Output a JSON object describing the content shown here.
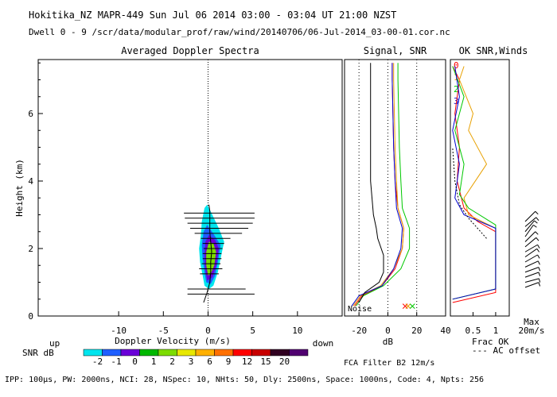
{
  "header": {
    "title": "Hokitika_NZ  MAPR-449  Sun Jul 06 2014 03:00 - 03:04 UT 21:00 NZST",
    "dwell": "Dwell  0 - 9  /scr/data/modular_prof/raw/wind/20140706/06-Jul-2014_03-00-01.cor.nc"
  },
  "footer": {
    "params": "IPP: 100µs,  PW: 2000ns,  NCI:  28,  NSpec: 10, NHts: 50,  Dly: 2500ns,  Space: 1000ns,  Code: 4,  Npts: 256",
    "fca": "FCA Filter B2 12m/s"
  },
  "colors": {
    "snr_scale": [
      "#00e5ee",
      "#1e5fff",
      "#6a00d8",
      "#00b800",
      "#7cdc00",
      "#e8e800",
      "#ffb000",
      "#ff7000",
      "#ff0000",
      "#c80000",
      "#300020",
      "#500070"
    ],
    "series": [
      "#ff0000",
      "#e8a000",
      "#00c800",
      "#0000d0"
    ]
  },
  "chart_data": [
    {
      "id": "doppler",
      "type": "heatmap",
      "title": "Averaged Doppler Spectra",
      "xlabel": "Doppler Velocity (m/s)",
      "ylabel": "Height (km)",
      "xlim": [
        -19,
        15
      ],
      "ylim": [
        0,
        7.6
      ],
      "x_ticks": [
        -10,
        -5,
        0,
        5,
        10
      ],
      "y_ticks": [
        0,
        2,
        4,
        6
      ],
      "x_end_labels": [
        "up",
        "down"
      ],
      "colorbar": {
        "label": "SNR dB",
        "tick_labels": [
          "-2",
          "-1",
          "0",
          "1",
          "2",
          "3",
          "6",
          "9",
          "12",
          "15",
          "20"
        ]
      },
      "contours": [
        {
          "level": "-2",
          "points": [
            [
              -0.4,
              0.9
            ],
            [
              -0.6,
              1.2
            ],
            [
              -0.9,
              1.6
            ],
            [
              -1.0,
              2.0
            ],
            [
              -0.8,
              2.4
            ],
            [
              -0.7,
              2.8
            ],
            [
              -0.4,
              3.2
            ],
            [
              -0.1,
              3.3
            ],
            [
              0.3,
              3.1
            ],
            [
              1.2,
              2.6
            ],
            [
              1.8,
              2.2
            ],
            [
              1.4,
              1.7
            ],
            [
              1.1,
              1.3
            ],
            [
              0.6,
              0.9
            ],
            [
              0.1,
              0.8
            ]
          ]
        },
        {
          "level": "-1",
          "points": [
            [
              -0.2,
              1.0
            ],
            [
              -0.4,
              1.3
            ],
            [
              -0.6,
              1.7
            ],
            [
              -0.7,
              2.1
            ],
            [
              -0.5,
              2.5
            ],
            [
              -0.1,
              2.7
            ],
            [
              0.7,
              2.4
            ],
            [
              1.4,
              2.1
            ],
            [
              1.1,
              1.6
            ],
            [
              0.8,
              1.2
            ],
            [
              0.3,
              0.95
            ]
          ]
        },
        {
          "level": "0",
          "points": [
            [
              -0.1,
              1.05
            ],
            [
              -0.3,
              1.4
            ],
            [
              -0.4,
              1.8
            ],
            [
              -0.3,
              2.2
            ],
            [
              0.1,
              2.4
            ],
            [
              0.8,
              2.25
            ],
            [
              1.2,
              2.0
            ],
            [
              0.9,
              1.5
            ],
            [
              0.5,
              1.15
            ]
          ]
        },
        {
          "level": "2",
          "points": [
            [
              0.0,
              1.2
            ],
            [
              -0.2,
              1.5
            ],
            [
              -0.2,
              1.9
            ],
            [
              0.1,
              2.2
            ],
            [
              0.6,
              2.15
            ],
            [
              0.9,
              1.9
            ],
            [
              0.7,
              1.5
            ],
            [
              0.3,
              1.25
            ]
          ]
        }
      ],
      "spread_bars": [
        {
          "h": 3.05,
          "w": [
            -2.7,
            5.2
          ]
        },
        {
          "h": 2.9,
          "w": [
            -2.6,
            5.2
          ]
        },
        {
          "h": 2.75,
          "w": [
            -2.3,
            5.0
          ]
        },
        {
          "h": 2.6,
          "w": [
            -2.0,
            4.5
          ]
        },
        {
          "h": 2.45,
          "w": [
            -1.5,
            3.8
          ]
        },
        {
          "h": 2.3,
          "w": [
            -0.8,
            2.5
          ]
        },
        {
          "h": 2.15,
          "w": [
            -0.6,
            1.8
          ]
        },
        {
          "h": 2.0,
          "w": [
            -0.5,
            1.6
          ]
        },
        {
          "h": 1.85,
          "w": [
            -0.6,
            1.5
          ]
        },
        {
          "h": 1.7,
          "w": [
            -0.6,
            1.5
          ]
        },
        {
          "h": 1.55,
          "w": [
            -0.7,
            1.4
          ]
        },
        {
          "h": 1.4,
          "w": [
            -1.0,
            1.6
          ]
        },
        {
          "h": 1.25,
          "w": [
            -0.9,
            1.2
          ]
        },
        {
          "h": 0.8,
          "w": [
            -2.3,
            4.2
          ]
        },
        {
          "h": 0.65,
          "w": [
            -2.3,
            5.2
          ]
        }
      ],
      "mean_velocity": [
        [
          -0.5,
          0.4
        ],
        [
          -0.1,
          0.7
        ],
        [
          0.2,
          1.0
        ],
        [
          0.3,
          1.3
        ],
        [
          0.3,
          1.6
        ],
        [
          0.4,
          1.9
        ],
        [
          0.3,
          2.2
        ],
        [
          0.2,
          2.5
        ],
        [
          0.2,
          2.8
        ],
        [
          0.2,
          3.1
        ],
        [
          0.1,
          3.3
        ]
      ]
    },
    {
      "id": "signal",
      "type": "line",
      "title": "Signal, SNR",
      "xlabel": "dB",
      "xlim": [
        -30,
        40
      ],
      "ylim": [
        0,
        7.6
      ],
      "x_ticks": [
        -20,
        0,
        20,
        40
      ],
      "dotted_x": [
        -20,
        0,
        20
      ],
      "noise_label": "Noise",
      "series": [
        {
          "values": [
            [
              -23,
              0.3
            ],
            [
              -18,
              0.6
            ],
            [
              -4,
              0.9
            ],
            [
              5,
              1.4
            ],
            [
              10,
              2.0
            ],
            [
              11,
              2.6
            ],
            [
              7,
              3.2
            ],
            [
              5,
              4.0
            ],
            [
              4,
              5.0
            ],
            [
              3.5,
              6.0
            ],
            [
              3,
              7.0
            ],
            [
              3,
              7.5
            ]
          ]
        },
        {
          "values": [
            [
              -24,
              0.3
            ],
            [
              -19,
              0.6
            ],
            [
              -5,
              0.9
            ],
            [
              4,
              1.4
            ],
            [
              10,
              2.0
            ],
            [
              11,
              2.6
            ],
            [
              7,
              3.2
            ],
            [
              6,
              4.0
            ],
            [
              5,
              5.0
            ],
            [
              4.5,
              6.0
            ],
            [
              4,
              7.0
            ],
            [
              4,
              7.5
            ]
          ]
        },
        {
          "values": [
            [
              -22,
              0.3
            ],
            [
              -17,
              0.6
            ],
            [
              -3,
              0.9
            ],
            [
              9,
              1.4
            ],
            [
              15,
              2.0
            ],
            [
              15,
              2.6
            ],
            [
              10,
              3.2
            ],
            [
              9,
              4.0
            ],
            [
              8,
              5.0
            ],
            [
              7.5,
              6.0
            ],
            [
              7,
              7.0
            ],
            [
              7,
              7.5
            ]
          ]
        },
        {
          "values": [
            [
              -25,
              0.3
            ],
            [
              -20,
              0.6
            ],
            [
              -4,
              0.9
            ],
            [
              4,
              1.4
            ],
            [
              9,
              2.0
            ],
            [
              10,
              2.6
            ],
            [
              6,
              3.2
            ],
            [
              5,
              4.0
            ],
            [
              4,
              5.0
            ],
            [
              3.5,
              6.0
            ],
            [
              3,
              7.0
            ],
            [
              3,
              7.5
            ]
          ]
        },
        {
          "values": [
            [
              -20,
              0.4
            ],
            [
              -16,
              0.7
            ],
            [
              -6,
              1.0
            ],
            [
              -3,
              1.3
            ],
            [
              -3,
              1.8
            ],
            [
              -7,
              2.3
            ],
            [
              -8,
              2.6
            ],
            [
              -10,
              3.0
            ],
            [
              -12,
              4.0
            ],
            [
              -12,
              5.0
            ],
            [
              -12,
              6.0
            ],
            [
              -12,
              7.0
            ],
            [
              -12,
              7.5
            ]
          ]
        }
      ],
      "noise_markers": [
        {
          "x": 12,
          "h": 0.15
        },
        {
          "x": 14,
          "h": 0.15
        },
        {
          "x": 17,
          "h": 0.15
        }
      ]
    },
    {
      "id": "ok-winds",
      "type": "line",
      "title": "OK SNR,Winds",
      "xlabel": "Frac OK",
      "x_ticks": [
        0.5,
        1
      ],
      "xlim": [
        0,
        1.3
      ],
      "ylim": [
        0,
        7.6
      ],
      "legend": [
        "0",
        "1",
        "2",
        "3"
      ],
      "legend_placement": "top-left",
      "notes": [
        "--- AC offset"
      ],
      "max_label": [
        "Max",
        "20m/s"
      ],
      "series": [
        {
          "values": [
            [
              0.05,
              0.4
            ],
            [
              1.0,
              0.7
            ],
            [
              1.0,
              2.5
            ],
            [
              0.6,
              2.8
            ],
            [
              0.3,
              3.2
            ],
            [
              0.15,
              4.0
            ],
            [
              0.2,
              5.0
            ],
            [
              0.1,
              6.0
            ],
            [
              0.2,
              7.0
            ],
            [
              0.05,
              7.4
            ]
          ]
        },
        {
          "values": [
            [
              0.05,
              0.5
            ],
            [
              1.0,
              0.8
            ],
            [
              1.0,
              2.6
            ],
            [
              0.4,
              3.0
            ],
            [
              0.3,
              3.5
            ],
            [
              0.8,
              4.5
            ],
            [
              0.4,
              5.5
            ],
            [
              0.5,
              6.0
            ],
            [
              0.2,
              7.0
            ],
            [
              0.3,
              7.4
            ]
          ]
        },
        {
          "values": [
            [
              0.05,
              0.5
            ],
            [
              1.0,
              0.8
            ],
            [
              1.0,
              2.7
            ],
            [
              0.4,
              3.2
            ],
            [
              0.2,
              3.6
            ],
            [
              0.3,
              4.5
            ],
            [
              0.1,
              5.5
            ],
            [
              0.3,
              6.5
            ],
            [
              0.05,
              7.4
            ]
          ]
        },
        {
          "values": [
            [
              0.05,
              0.5
            ],
            [
              1.0,
              0.8
            ],
            [
              1.0,
              2.6
            ],
            [
              0.3,
              3.0
            ],
            [
              0.1,
              3.5
            ],
            [
              0.2,
              4.5
            ],
            [
              0.05,
              5.5
            ],
            [
              0.2,
              6.5
            ],
            [
              0.1,
              7.4
            ]
          ]
        }
      ],
      "ac_offset": [
        [
          0.8,
          2.3
        ],
        [
          0.6,
          2.6
        ],
        [
          0.4,
          2.9
        ],
        [
          0.2,
          3.3
        ],
        [
          0.1,
          4.0
        ],
        [
          0.05,
          5.0
        ]
      ],
      "wind_barbs": [
        {
          "h": 2.8,
          "dir": 225
        },
        {
          "h": 2.65,
          "dir": 230
        },
        {
          "h": 2.5,
          "dir": 220
        },
        {
          "h": 2.35,
          "dir": 215
        },
        {
          "h": 2.2,
          "dir": 225
        },
        {
          "h": 2.05,
          "dir": 230
        },
        {
          "h": 1.9,
          "dir": 240
        },
        {
          "h": 1.75,
          "dir": 235
        },
        {
          "h": 1.6,
          "dir": 240
        },
        {
          "h": 1.45,
          "dir": 245
        },
        {
          "h": 1.3,
          "dir": 250
        },
        {
          "h": 1.15,
          "dir": 250
        },
        {
          "h": 1.0,
          "dir": 255
        },
        {
          "h": 0.85,
          "dir": 250
        }
      ]
    }
  ]
}
